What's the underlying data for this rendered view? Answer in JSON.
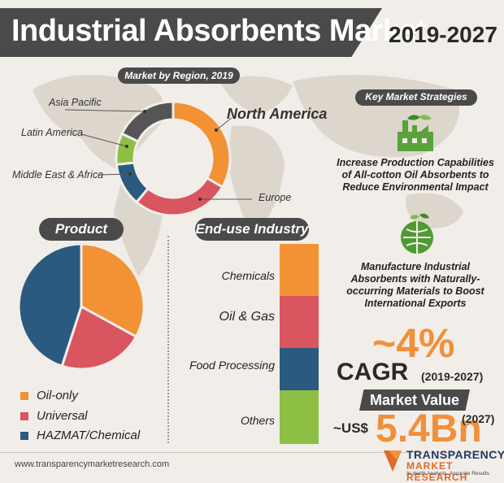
{
  "header": {
    "title": "Industrial Absorbents Market",
    "years": "2019-2027"
  },
  "region_section": {
    "label": "Market by Region, 2019",
    "labels": {
      "north_america": "North America",
      "europe": "Europe",
      "mea": "Middle East & Africa",
      "latin_america": "Latin America",
      "asia_pacific": "Asia Pacific"
    }
  },
  "strategies": {
    "label": "Key Market Strategies",
    "items": [
      "Increase Production Capabilities of All-cotton Oil Absorbents to Reduce Environmental Impact",
      "Manufacture Industrial Absorbents with Naturally-occurring Materials to Boost International Exports"
    ]
  },
  "product": {
    "label": "Product",
    "legend": [
      "Oil-only",
      "Universal",
      "HAZMAT/Chemical"
    ]
  },
  "end_use": {
    "label": "End-use Industry",
    "items": [
      "Chemicals",
      "Oil & Gas",
      "Food Processing",
      "Others"
    ]
  },
  "cagr": {
    "value": "~4%",
    "label": "CAGR",
    "years": "(2019-2027)"
  },
  "market_value": {
    "label": "Market Value",
    "prefix": "~US$",
    "value": "5.4Bn",
    "year": "(2027)"
  },
  "footer": {
    "url": "www.transparencymarketresearch.com",
    "brand_line1": "TRANSPARENCY",
    "brand_line2": "MARKET RESEARCH",
    "brand_tagline": "In-depth Analysis. Accurate Results"
  },
  "colors": {
    "orange": "#f29234",
    "red": "#d9555f",
    "blue": "#2b5a80",
    "green": "#8dbf44",
    "gray": "#555555",
    "navy": "#203a5e"
  },
  "chart_data": [
    {
      "type": "pie",
      "title": "Market by Region, 2019",
      "categories": [
        "North America",
        "Europe",
        "Middle East & Africa",
        "Latin America",
        "Asia Pacific"
      ],
      "values": [
        30,
        25,
        11,
        8,
        16
      ],
      "colors": [
        "#f29234",
        "#d9555f",
        "#2b5a80",
        "#8dbf44",
        "#555555"
      ],
      "donut": true
    },
    {
      "type": "pie",
      "title": "Product",
      "categories": [
        "Oil-only",
        "Universal",
        "HAZMAT/Chemical"
      ],
      "values": [
        33,
        22,
        45
      ],
      "colors": [
        "#f29234",
        "#d9555f",
        "#2b5a80"
      ]
    },
    {
      "type": "bar",
      "title": "End-use Industry",
      "categories": [
        "Chemicals",
        "Oil & Gas",
        "Food Processing",
        "Others"
      ],
      "values": [
        1,
        1,
        1,
        1
      ],
      "colors": [
        "#f29234",
        "#d9555f",
        "#2b5a80",
        "#8dbf44"
      ]
    }
  ]
}
